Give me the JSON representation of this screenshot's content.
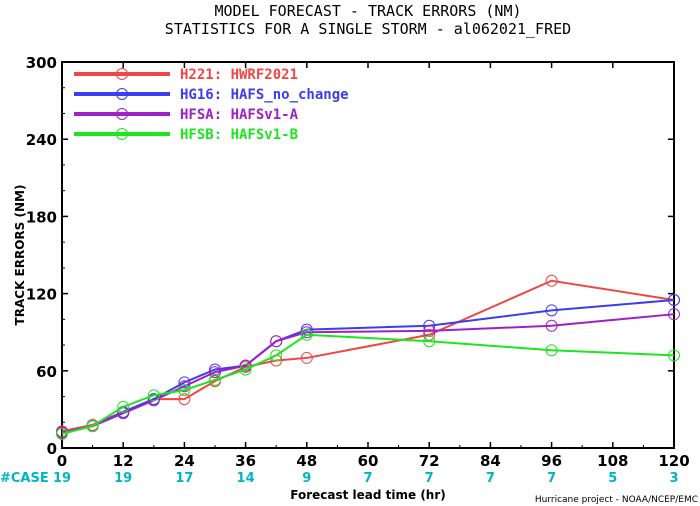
{
  "chart_data": {
    "type": "line",
    "title": "MODEL FORECAST - TRACK ERRORS (NM)",
    "subtitle": "STATISTICS FOR A SINGLE STORM - al062021_FRED",
    "xlabel": "Forecast lead time (hr)",
    "ylabel": "TRACK ERRORS (NM)",
    "xlim": [
      0,
      120
    ],
    "ylim": [
      0,
      300
    ],
    "x_ticks": [
      "0",
      "12",
      "24",
      "36",
      "48",
      "60",
      "72",
      "84",
      "96",
      "108",
      "120"
    ],
    "y_ticks": [
      "0",
      "60",
      "120",
      "180",
      "240",
      "300"
    ],
    "grid": false,
    "legend_position": "top-left",
    "case_label": "#CASE",
    "cases": [
      {
        "x": 0,
        "n": "19"
      },
      {
        "x": 12,
        "n": "19"
      },
      {
        "x": 24,
        "n": "17"
      },
      {
        "x": 36,
        "n": "14"
      },
      {
        "x": 48,
        "n": "9"
      },
      {
        "x": 60,
        "n": "7"
      },
      {
        "x": 72,
        "n": "7"
      },
      {
        "x": 84,
        "n": "7"
      },
      {
        "x": 96,
        "n": "7"
      },
      {
        "x": 108,
        "n": "5"
      },
      {
        "x": 120,
        "n": "3"
      }
    ],
    "series": [
      {
        "name": "H221: HWRF2021",
        "color": "#f04646",
        "x": [
          0,
          6,
          12,
          18,
          24,
          30,
          36,
          42,
          48,
          72,
          96,
          120
        ],
        "values": [
          13,
          18,
          28,
          38,
          38,
          52,
          63,
          68,
          70,
          88,
          130,
          115
        ]
      },
      {
        "name": "HG16: HAFS_no_change",
        "color": "#3c3cf0",
        "x": [
          0,
          6,
          12,
          18,
          24,
          30,
          36,
          42,
          48,
          72,
          96,
          120
        ],
        "values": [
          12,
          17,
          28,
          38,
          51,
          61,
          64,
          83,
          92,
          95,
          107,
          115
        ]
      },
      {
        "name": "HFSA: HAFSv1-A",
        "color": "#a020c8",
        "x": [
          0,
          6,
          12,
          18,
          24,
          30,
          36,
          42,
          48,
          72,
          96,
          120
        ],
        "values": [
          12,
          17,
          27,
          37,
          48,
          59,
          64,
          83,
          90,
          91,
          95,
          104
        ]
      },
      {
        "name": "HFSB: HAFSv1-B",
        "color": "#1ee61e",
        "x": [
          0,
          6,
          12,
          18,
          24,
          30,
          36,
          42,
          48,
          72,
          96,
          120
        ],
        "values": [
          11,
          17,
          32,
          41,
          45,
          53,
          61,
          72,
          88,
          83,
          76,
          72
        ]
      }
    ]
  },
  "footer": {
    "credit": "Hurricane project - NOAA/NCEP/EMC"
  }
}
